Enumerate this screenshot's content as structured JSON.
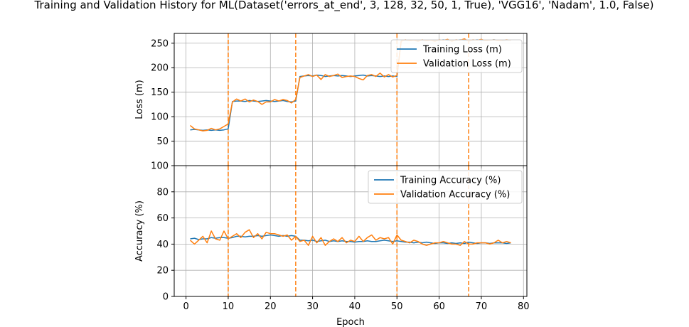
{
  "title": "Training and Validation History for ML(Dataset('errors_at_end', 3, 128, 32, 50, 1, True), 'VGG16', 'Nadam', 1.0, False)",
  "colors": {
    "training": "#1f77b4",
    "validation": "#ff7f0e",
    "grid": "#b0b0b0",
    "axis": "#000000"
  },
  "chart_data": [
    {
      "type": "line",
      "ylabel": "Loss (m)",
      "xlabel": "",
      "xlim": [
        -2.8,
        80.8
      ],
      "ylim": [
        0,
        270
      ],
      "xticks": [
        0,
        10,
        20,
        30,
        40,
        50,
        60,
        70,
        80
      ],
      "yticks": [
        50,
        100,
        150,
        200,
        250
      ],
      "ytick_labels": [
        "50",
        "100",
        "150",
        "200",
        "250"
      ],
      "grid": true,
      "legend_position": "upper-right",
      "vlines": [
        10,
        26,
        50,
        67
      ],
      "x": [
        1,
        2,
        3,
        4,
        5,
        6,
        7,
        8,
        9,
        10,
        11,
        12,
        13,
        14,
        15,
        16,
        17,
        18,
        19,
        20,
        21,
        22,
        23,
        24,
        25,
        26,
        27,
        28,
        29,
        30,
        31,
        32,
        33,
        34,
        35,
        36,
        37,
        38,
        39,
        40,
        41,
        42,
        43,
        44,
        45,
        46,
        47,
        48,
        49,
        50,
        51,
        52,
        53,
        54,
        55,
        56,
        57,
        58,
        59,
        60,
        61,
        62,
        63,
        64,
        65,
        66,
        67,
        68,
        69,
        70,
        71,
        72,
        73,
        74,
        75,
        76,
        77
      ],
      "series": [
        {
          "name": "Training Loss (m)",
          "color": "#1f77b4",
          "values": [
            73,
            74,
            73,
            72,
            73,
            72,
            73,
            72,
            73,
            75,
            131,
            132,
            132,
            131,
            133,
            132,
            131,
            132,
            133,
            132,
            131,
            132,
            133,
            131,
            130,
            132,
            182,
            183,
            184,
            183,
            185,
            184,
            182,
            183,
            184,
            183,
            184,
            183,
            182,
            183,
            184,
            185,
            183,
            184,
            183,
            182,
            183,
            182,
            183,
            182,
            255,
            256,
            255,
            256,
            255,
            256,
            255,
            256,
            255,
            256,
            257,
            256,
            255,
            256,
            257,
            256,
            255,
            256,
            257,
            256,
            255,
            256,
            257,
            256,
            255,
            256,
            256
          ]
        },
        {
          "name": "Validation Loss (m)",
          "color": "#ff7f0e",
          "values": [
            82,
            75,
            73,
            71,
            72,
            76,
            73,
            75,
            80,
            85,
            130,
            136,
            132,
            136,
            130,
            134,
            131,
            125,
            130,
            130,
            135,
            132,
            135,
            133,
            128,
            135,
            180,
            183,
            186,
            182,
            185,
            176,
            186,
            182,
            184,
            187,
            180,
            182,
            183,
            182,
            178,
            175,
            184,
            186,
            182,
            189,
            181,
            186,
            181,
            184,
            254,
            257,
            255,
            256,
            254,
            257,
            255,
            256,
            254,
            257,
            256,
            258,
            254,
            257,
            256,
            259,
            254,
            257,
            256,
            258,
            255,
            256,
            257,
            255,
            256,
            257,
            256
          ]
        }
      ]
    },
    {
      "type": "line",
      "ylabel": "Accuracy (%)",
      "xlabel": "Epoch",
      "xlim": [
        -2.8,
        80.8
      ],
      "ylim": [
        0,
        100
      ],
      "xticks": [
        0,
        10,
        20,
        30,
        40,
        50,
        60,
        70,
        80
      ],
      "xtick_labels": [
        "0",
        "10",
        "20",
        "30",
        "40",
        "50",
        "60",
        "70",
        "80"
      ],
      "yticks": [
        0,
        20,
        40,
        60,
        80,
        100
      ],
      "ytick_labels": [
        "0",
        "20",
        "40",
        "60",
        "80",
        "100"
      ],
      "grid": true,
      "legend_position": "upper-right",
      "vlines": [
        10,
        26,
        50,
        67
      ],
      "x": [
        1,
        2,
        3,
        4,
        5,
        6,
        7,
        8,
        9,
        10,
        11,
        12,
        13,
        14,
        15,
        16,
        17,
        18,
        19,
        20,
        21,
        22,
        23,
        24,
        25,
        26,
        27,
        28,
        29,
        30,
        31,
        32,
        33,
        34,
        35,
        36,
        37,
        38,
        39,
        40,
        41,
        42,
        43,
        44,
        45,
        46,
        47,
        48,
        49,
        50,
        51,
        52,
        53,
        54,
        55,
        56,
        57,
        58,
        59,
        60,
        61,
        62,
        63,
        64,
        65,
        66,
        67,
        68,
        69,
        70,
        71,
        72,
        73,
        74,
        75,
        76,
        77
      ],
      "series": [
        {
          "name": "Training Accuracy (%)",
          "color": "#1f77b4",
          "values": [
            44,
            44.5,
            43.5,
            44,
            44,
            45,
            44.5,
            45,
            45,
            44.5,
            45,
            46,
            46,
            45.5,
            46,
            46,
            46.5,
            46,
            46.5,
            47,
            46.5,
            46,
            46.5,
            46,
            46.5,
            46,
            43,
            43,
            42.5,
            43,
            42,
            42.5,
            43,
            42,
            42.5,
            42,
            42.5,
            42,
            42,
            41.5,
            42,
            42,
            42.5,
            42,
            42,
            42.5,
            43,
            42.5,
            42,
            42.5,
            42,
            41.5,
            41.5,
            41,
            41.5,
            41,
            41.5,
            41,
            40.5,
            41,
            41,
            40.5,
            41,
            40.5,
            41,
            40.5,
            41.5,
            41,
            40.5,
            41,
            41,
            40.5,
            41,
            41,
            41,
            40.5,
            41
          ]
        },
        {
          "name": "Validation Accuracy (%)",
          "color": "#ff7f0e",
          "values": [
            43,
            40,
            43,
            46,
            41,
            50,
            44,
            43,
            50,
            44,
            46,
            48,
            45,
            49,
            51,
            45,
            48,
            44,
            49,
            48,
            48,
            47,
            46,
            47,
            43,
            46,
            42,
            43,
            39,
            46,
            41,
            45,
            39,
            42,
            44,
            42,
            45,
            41,
            43,
            42,
            46,
            42,
            45,
            47,
            43,
            45,
            44,
            45,
            40,
            47,
            43,
            42,
            41,
            43,
            42,
            40,
            39,
            40,
            41,
            41,
            42,
            41,
            40,
            40,
            39,
            42,
            40,
            40,
            41,
            41,
            41,
            40,
            41,
            43,
            41,
            42,
            41
          ]
        }
      ]
    }
  ]
}
